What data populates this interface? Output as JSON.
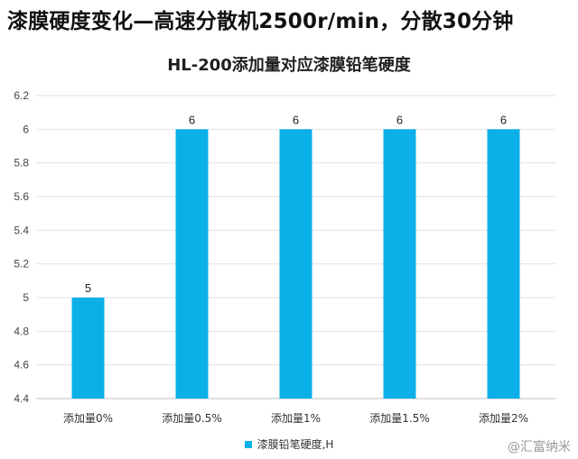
{
  "header": {
    "title": "漆膜硬度变化—高速分散机2500r/min，分散30分钟"
  },
  "watermark": "@汇富纳米",
  "chart_data": {
    "type": "bar",
    "title": "HL-200添加量对应漆膜铅笔硬度",
    "xlabel": "",
    "ylabel": "",
    "categories": [
      "添加量0%",
      "添加量0.5%",
      "添加量1%",
      "添加量1.5%",
      "添加量2%"
    ],
    "series": [
      {
        "name": "漆膜铅笔硬度,H",
        "values": [
          5,
          6,
          6,
          6,
          6
        ],
        "color": "#0cb0e8"
      }
    ],
    "ylim": [
      4.4,
      6.2
    ],
    "yticks": [
      "6.2",
      "6",
      "5.8",
      "5.6",
      "5.4",
      "5.2",
      "5",
      "4.8",
      "4.6",
      "4.4"
    ],
    "data_labels": true,
    "grid": true,
    "legend_position": "bottom"
  }
}
